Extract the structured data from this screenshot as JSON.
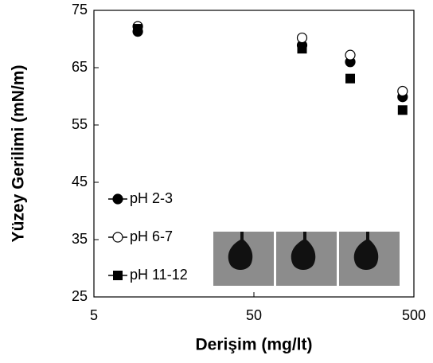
{
  "chart_data": {
    "type": "scatter",
    "x_label": "Derişim (mg/lt)",
    "y_label": "Yüzey Gerilimi (mN/m)",
    "x": [
      9.4,
      100,
      200,
      425
    ],
    "series": [
      {
        "name": "pH 2-3",
        "color": "#000000",
        "marker": "circle-filled",
        "values": [
          71.3,
          68.9,
          66.0,
          59.9
        ]
      },
      {
        "name": "pH 6-7",
        "color": "#000000",
        "marker": "circle-open",
        "values": [
          72.2,
          70.2,
          67.2,
          60.9
        ]
      },
      {
        "name": "pH 11-12",
        "color": "#000000",
        "marker": "square",
        "values": [
          71.8,
          68.3,
          63.1,
          57.6
        ]
      }
    ],
    "xlim": [
      5,
      500
    ],
    "xticks": [
      5,
      50,
      500
    ],
    "xscale": "log",
    "ylim": [
      25,
      75
    ],
    "yticks": [
      25,
      35,
      45,
      55,
      65,
      75
    ],
    "legend": "lower left"
  }
}
